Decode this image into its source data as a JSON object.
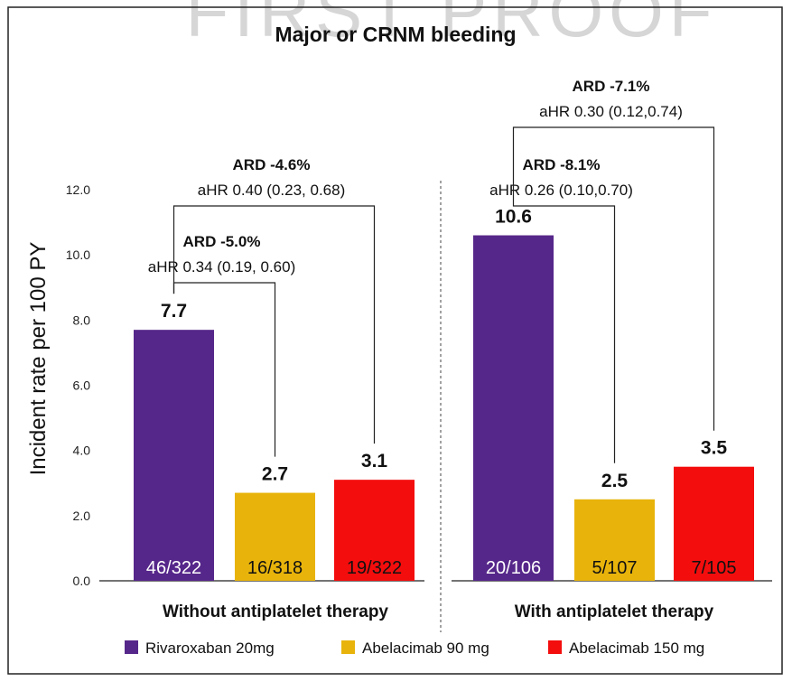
{
  "chart_data": {
    "type": "bar",
    "title": "Major or CRNM bleeding",
    "watermark": "FIRST PROOF",
    "ylabel": "Incident rate per 100 PY",
    "ylim": [
      0,
      12
    ],
    "yticks": [
      "0.0",
      "2.0",
      "4.0",
      "6.0",
      "8.0",
      "10.0",
      "12.0"
    ],
    "grid": false,
    "legend_position": "bottom",
    "series": [
      {
        "name": "Rivaroxaban 20mg",
        "color": "#56278a"
      },
      {
        "name": "Abelacimab 90 mg",
        "color": "#e8b40b"
      },
      {
        "name": "Abelacimab 150 mg",
        "color": "#f40d0d"
      }
    ],
    "groups": [
      {
        "label": "Without antiplatelet therapy",
        "bars": [
          {
            "series": 0,
            "value": 7.7,
            "value_label": "7.7",
            "count_label": "46/322"
          },
          {
            "series": 1,
            "value": 2.7,
            "value_label": "2.7",
            "count_label": "16/318"
          },
          {
            "series": 2,
            "value": 3.1,
            "value_label": "3.1",
            "count_label": "19/322"
          }
        ],
        "comparisons": [
          {
            "from": 0,
            "to": 1,
            "ard": "ARD -5.0%",
            "ahr": "aHR 0.34 (0.19, 0.60)"
          },
          {
            "from": 0,
            "to": 2,
            "ard": "ARD -4.6%",
            "ahr": "aHR 0.40 (0.23, 0.68)"
          }
        ]
      },
      {
        "label": "With antiplatelet therapy",
        "bars": [
          {
            "series": 0,
            "value": 10.6,
            "value_label": "10.6",
            "count_label": "20/106"
          },
          {
            "series": 1,
            "value": 2.5,
            "value_label": "2.5",
            "count_label": "5/107"
          },
          {
            "series": 2,
            "value": 3.5,
            "value_label": "3.5",
            "count_label": "7/105"
          }
        ],
        "comparisons": [
          {
            "from": 0,
            "to": 1,
            "ard": "ARD -8.1%",
            "ahr": "aHR 0.26 (0.10,0.70)"
          },
          {
            "from": 0,
            "to": 2,
            "ard": "ARD -7.1%",
            "ahr": "aHR 0.30 (0.12,0.74)"
          }
        ]
      }
    ]
  }
}
